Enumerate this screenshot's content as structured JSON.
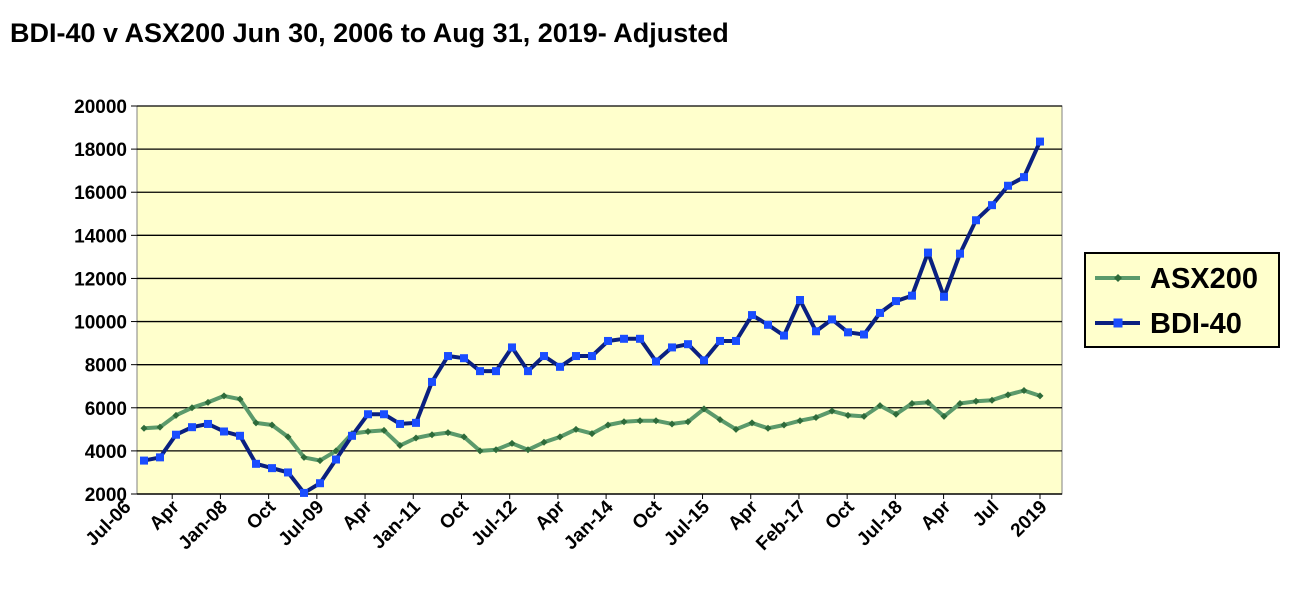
{
  "chart_data": {
    "type": "line",
    "title": "BDI-40 v ASX200 Jun 30, 2006 to Aug 31, 2019- Adjusted",
    "xlabel": "",
    "ylabel": "",
    "ylim": [
      2000,
      20000
    ],
    "yticks": [
      "20000",
      "18000",
      "16000",
      "14000",
      "12000",
      "10000",
      "8000",
      "6000",
      "4000",
      "2000"
    ],
    "xticks": [
      "Jul-06",
      "Apr",
      "Jan-08",
      "Oct",
      "Jul-09",
      "Apr",
      "Jan-11",
      "Oct",
      "Jul-12",
      "Apr",
      "Jan-14",
      "Oct",
      "Jul-15",
      "Apr",
      "Feb-17",
      "Oct",
      "Jul-18",
      "Apr",
      "Jul",
      "2019"
    ],
    "grid": true,
    "legend_position": "right",
    "plot_background": "#ffffcc",
    "series": [
      {
        "name": "ASX200",
        "color": "#5b9a6b",
        "marker": "diamond",
        "values": [
          5050,
          5100,
          5650,
          6000,
          6250,
          6550,
          6400,
          5300,
          5200,
          4650,
          3700,
          3550,
          4000,
          4800,
          4900,
          4950,
          4250,
          4600,
          4750,
          4850,
          4650,
          4000,
          4050,
          4350,
          4050,
          4400,
          4650,
          5000,
          4800,
          5200,
          5350,
          5400,
          5400,
          5250,
          5350,
          5950,
          5450,
          5000,
          5300,
          5050,
          5200,
          5400,
          5550,
          5850,
          5650,
          5600,
          6100,
          5700,
          6200,
          6250,
          5600,
          6200,
          6300,
          6350,
          6600,
          6800,
          6550
        ]
      },
      {
        "name": "BDI-40",
        "color": "#0a2080",
        "marker": "square",
        "values": [
          3550,
          3700,
          4750,
          5100,
          5250,
          4900,
          4700,
          3400,
          3200,
          3000,
          2050,
          2500,
          3600,
          4700,
          5700,
          5700,
          5250,
          5300,
          7200,
          8400,
          8300,
          7700,
          7700,
          8800,
          7700,
          8400,
          7900,
          8400,
          8400,
          9100,
          9200,
          9200,
          8150,
          8800,
          8950,
          8200,
          9100,
          9100,
          10300,
          9850,
          9350,
          11000,
          9550,
          10100,
          9500,
          9400,
          10400,
          10950,
          11200,
          13200,
          11150,
          13150,
          14700,
          15400,
          16300,
          16700,
          18350
        ]
      }
    ]
  }
}
